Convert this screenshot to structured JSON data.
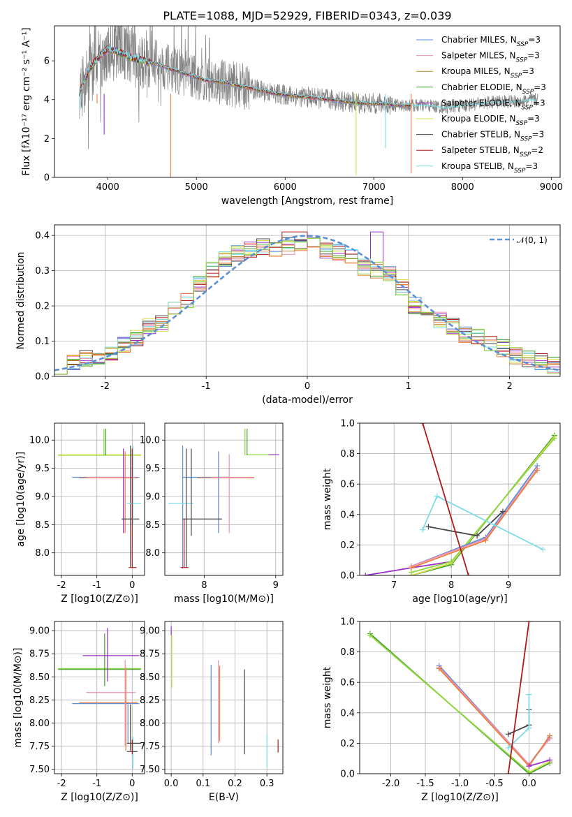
{
  "title": "PLATE=1088, MJD=52929, FIBERID=0343, z=0.039",
  "colors": {
    "chabrier_miles": "#5b8fd6",
    "salpeter_miles": "#ee8fb6",
    "kroupa_miles": "#c2812c",
    "chabrier_elodie": "#3f9f2f",
    "salpeter_elodie": "#9b2fcc",
    "kroupa_elodie": "#d6df4a",
    "chabrier_stelib": "#474747",
    "salpeter_stelib": "#b01a1a",
    "kroupa_stelib": "#7ddde6",
    "orange": "#ec7f3e",
    "lime": "#8fd643",
    "gauss": "#5b8fd6"
  },
  "chart_data": [
    {
      "id": "spectrum",
      "type": "line",
      "title": "PLATE=1088, MJD=52929, FIBERID=0343, z=0.039",
      "xlabel": "wavelength [Angstrom, rest frame]",
      "ylabel": "Flux [fλ10⁻¹⁷ erg cm⁻² s⁻¹ A⁻¹]",
      "xlim": [
        3400,
        9100
      ],
      "ylim": [
        0,
        7.8
      ],
      "xticks": [
        4000,
        5000,
        6000,
        7000,
        8000,
        9000
      ],
      "yticks": [
        0,
        2,
        4,
        6
      ],
      "legend": [
        {
          "label": "Chabrier MILES, N_SSP=3",
          "color": "#5b8fd6"
        },
        {
          "label": "Salpeter MILES, N_SSP=3",
          "color": "#ee8fb6"
        },
        {
          "label": "Kroupa MILES, N_SSP=3",
          "color": "#c2812c"
        },
        {
          "label": "Chabrier ELODIE, N_SSP=3",
          "color": "#3f9f2f"
        },
        {
          "label": "Salpeter ELODIE, N_SSP=3",
          "color": "#9b2fcc"
        },
        {
          "label": "Kroupa ELODIE, N_SSP=3",
          "color": "#d6df4a"
        },
        {
          "label": "Chabrier STELIB, N_SSP=3",
          "color": "#474747"
        },
        {
          "label": "Salpeter STELIB, N_SSP=2",
          "color": "#b01a1a"
        },
        {
          "label": "Kroupa STELIB, N_SSP=3",
          "color": "#7ddde6"
        }
      ],
      "data_envelope": {
        "x": [
          3680,
          3800,
          3900,
          4000,
          4100,
          4300,
          4500,
          4700,
          4900,
          5100,
          5300,
          5500,
          5700,
          5900,
          6100,
          6300,
          6500,
          6700,
          6900,
          7100,
          7300,
          7450,
          7600,
          7800,
          8000,
          8200,
          8400,
          8600,
          8800
        ],
        "y": [
          4.3,
          5.3,
          6.1,
          6.5,
          6.5,
          6.2,
          6.0,
          5.6,
          5.3,
          5.0,
          4.9,
          4.7,
          4.5,
          4.3,
          4.2,
          4.1,
          4.0,
          3.9,
          3.8,
          3.8,
          3.7,
          3.7,
          3.7,
          3.6,
          3.7,
          3.8,
          3.9,
          3.9,
          4.0
        ]
      },
      "model_envelope": {
        "x": [
          3680,
          3800,
          3900,
          4000,
          4100,
          4300,
          4500,
          4700,
          4900,
          5100,
          5300,
          5500,
          5700,
          5900,
          6100,
          6300,
          6500,
          6700,
          6900,
          7100,
          7300,
          7420
        ],
        "y": [
          4.4,
          5.6,
          6.2,
          6.6,
          6.5,
          6.1,
          5.9,
          5.6,
          5.3,
          5.0,
          4.9,
          4.7,
          4.5,
          4.3,
          4.2,
          4.1,
          4.0,
          3.9,
          3.8,
          3.8,
          3.7,
          3.7
        ]
      }
    },
    {
      "id": "residuals",
      "type": "line",
      "xlabel": "(data-model)/error",
      "ylabel": "Normed distribution",
      "xlim": [
        -2.5,
        2.5
      ],
      "ylim": [
        0,
        0.43
      ],
      "xticks": [
        -2,
        -1,
        0,
        1,
        2
      ],
      "yticks": [
        0.0,
        0.1,
        0.2,
        0.3,
        0.4
      ],
      "legend": [
        {
          "label": "𝒩(0, 1)",
          "style": "dashed",
          "color": "#5b8fd6"
        }
      ],
      "bins": 40,
      "bin_edges_range": [
        -2.5,
        2.5
      ],
      "histogram_base": [
        0.03,
        0.04,
        0.05,
        0.05,
        0.06,
        0.09,
        0.11,
        0.14,
        0.15,
        0.2,
        0.22,
        0.26,
        0.3,
        0.33,
        0.35,
        0.36,
        0.37,
        0.36,
        0.37,
        0.38,
        0.37,
        0.36,
        0.35,
        0.34,
        0.31,
        0.3,
        0.29,
        0.25,
        0.2,
        0.18,
        0.16,
        0.14,
        0.12,
        0.11,
        0.09,
        0.08,
        0.06,
        0.05,
        0.04,
        0.03
      ]
    },
    {
      "id": "age_vs_Z",
      "type": "scatter",
      "xlabel": "Z [log10(Z/Z⊙)]",
      "ylabel": "age  [log10(age/yr)]",
      "xlim": [
        -2.2,
        0.35
      ],
      "ylim": [
        7.6,
        10.3
      ],
      "xticks": [
        -2,
        -1,
        0
      ],
      "yticks": [
        8.0,
        8.5,
        9.0,
        9.5,
        10.0
      ]
    },
    {
      "id": "age_vs_mass",
      "type": "scatter",
      "xlabel": "mass [log10(M/M⊙)]",
      "ylabel": "",
      "xlim": [
        7.45,
        9.1
      ],
      "ylim": [
        7.6,
        10.3
      ],
      "xticks": [
        8,
        9
      ],
      "yticks": [
        8.0,
        8.5,
        9.0,
        9.5,
        10.0
      ]
    },
    {
      "id": "weight_vs_age",
      "type": "line",
      "xlabel": "age  [log10(age/yr)]",
      "ylabel": "mass weight",
      "xlim": [
        6.4,
        9.9
      ],
      "ylim": [
        0,
        1.0
      ],
      "xticks": [
        7,
        8,
        9
      ],
      "yticks": [
        0.0,
        0.2,
        0.4,
        0.6,
        0.8,
        1.0
      ]
    },
    {
      "id": "mass_vs_Z",
      "type": "scatter",
      "xlabel": "Z [log10(Z/Z⊙)]",
      "ylabel": "mass [log10(M/M⊙)]",
      "xlim": [
        -2.2,
        0.35
      ],
      "ylim": [
        7.45,
        9.1
      ],
      "xticks": [
        -2,
        -1,
        0
      ],
      "yticks": [
        7.5,
        7.75,
        8.0,
        8.25,
        8.5,
        8.75,
        9.0
      ]
    },
    {
      "id": "mass_vs_ebv",
      "type": "scatter",
      "xlabel": "E(B-V)",
      "ylabel": "",
      "xlim": [
        -0.02,
        0.35
      ],
      "ylim": [
        7.45,
        9.1
      ],
      "xticks": [
        0.0,
        0.1,
        0.2,
        0.3
      ],
      "yticks": [
        7.5,
        7.75,
        8.0,
        8.25,
        8.5,
        8.75,
        9.0
      ]
    },
    {
      "id": "weight_vs_Z",
      "type": "line",
      "xlabel": "Z [log10(Z/Z⊙)]",
      "ylabel": "mass weight",
      "xlim": [
        -2.45,
        0.45
      ],
      "ylim": [
        0,
        1.0
      ],
      "xticks": [
        -2.0,
        -1.5,
        -1.0,
        -0.5,
        0.0
      ],
      "yticks": [
        0.0,
        0.2,
        0.4,
        0.6,
        0.8,
        1.0
      ]
    }
  ]
}
